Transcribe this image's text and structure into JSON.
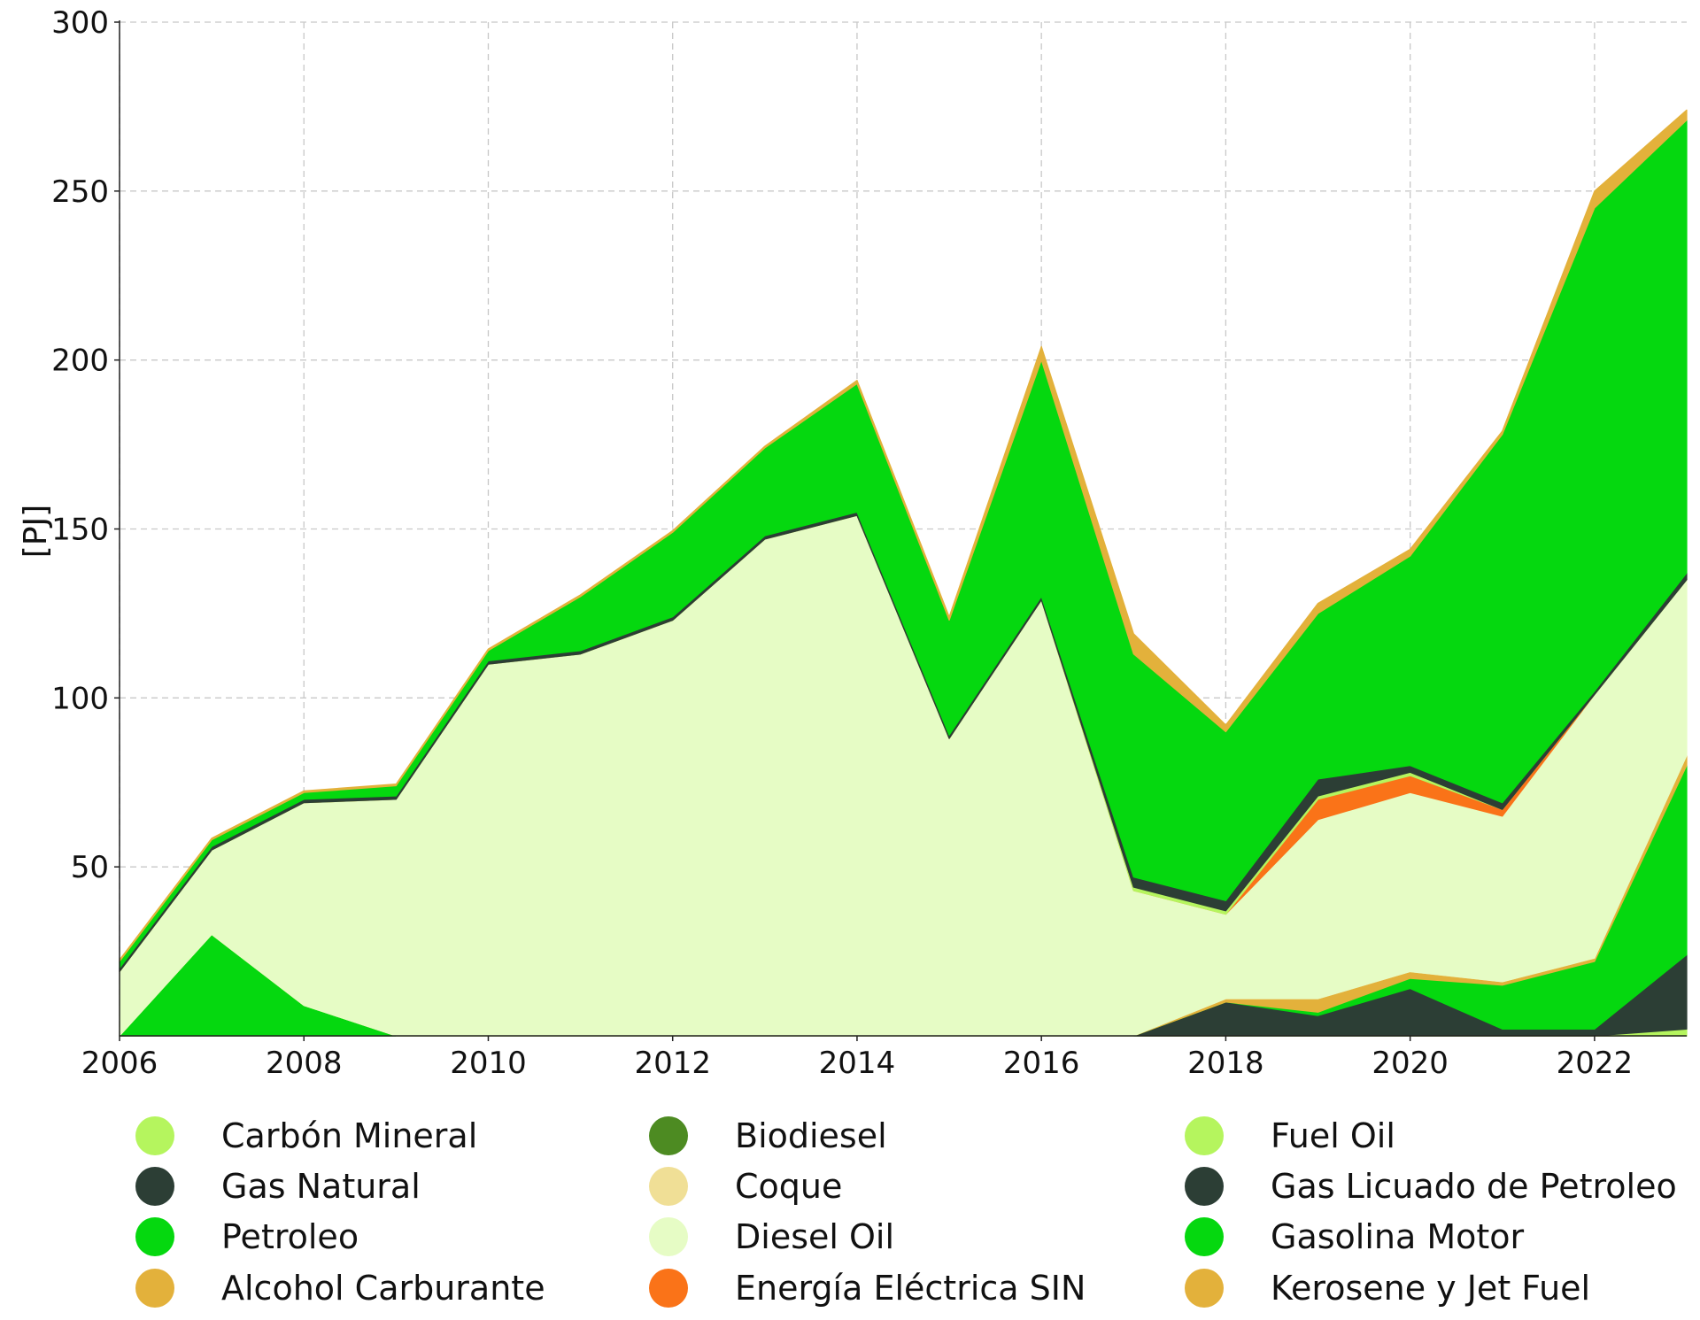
{
  "chart_data": {
    "type": "area",
    "stacked": true,
    "ylabel": "[PJ]",
    "ylim": [
      0,
      300
    ],
    "xlim": [
      2006,
      2023
    ],
    "x_ticks": [
      2006,
      2008,
      2010,
      2012,
      2014,
      2016,
      2018,
      2020,
      2022
    ],
    "y_ticks": [
      50,
      100,
      150,
      200,
      250,
      300
    ],
    "grid": true,
    "legend_position": "bottom",
    "x": [
      2006,
      2007,
      2008,
      2009,
      2010,
      2011,
      2012,
      2013,
      2014,
      2015,
      2016,
      2017,
      2018,
      2019,
      2020,
      2021,
      2022,
      2023
    ],
    "series": [
      {
        "name": "Carbón Mineral",
        "color": "#b5f55e",
        "values": [
          0,
          0,
          0,
          0,
          0,
          0,
          0,
          0,
          0,
          0,
          0,
          0,
          0,
          0,
          0,
          0,
          0,
          0
        ]
      },
      {
        "name": "Gas Natural",
        "color": "#2c3e35",
        "values": [
          0,
          0,
          0,
          0,
          0,
          0,
          0,
          0,
          0,
          0,
          0,
          0,
          0,
          0,
          0,
          0,
          0,
          0
        ]
      },
      {
        "name": "Petroleo",
        "color": "#05d80f",
        "values": [
          0,
          0,
          0,
          0,
          0,
          0,
          0,
          0,
          0,
          0,
          0,
          0,
          0,
          0,
          0,
          0,
          0,
          0
        ]
      },
      {
        "name": "Alcohol Carburante",
        "color": "#e3b13b",
        "values": [
          0,
          0,
          0,
          0,
          0,
          0,
          0,
          0,
          0,
          0,
          0,
          0,
          0,
          0,
          0,
          0,
          0,
          0
        ]
      },
      {
        "name": "Biodiesel",
        "color": "#4d8b22",
        "values": [
          0,
          0,
          0,
          0,
          0,
          0,
          0,
          0,
          0,
          0,
          0,
          0,
          0,
          0,
          0,
          0,
          0,
          0
        ]
      },
      {
        "name": "Coque",
        "color": "#f0df96",
        "values": [
          0,
          0,
          0,
          0,
          0,
          0,
          0,
          0,
          0,
          0,
          0,
          0,
          0,
          0,
          0,
          0,
          0,
          0
        ]
      },
      {
        "name": "Fuel Oil",
        "color": "#b5f55e",
        "values": [
          0,
          0,
          0,
          0,
          0,
          0,
          0,
          0,
          0,
          0,
          0,
          0,
          0,
          0,
          0,
          0,
          0,
          2
        ]
      },
      {
        "name": "Gas Licuado de Petroleo",
        "color": "#2c3e35",
        "values": [
          0,
          0,
          0,
          0,
          0,
          0,
          0,
          0,
          0,
          0,
          0,
          0,
          10,
          6,
          14,
          2,
          2,
          22
        ]
      },
      {
        "name": "Gasolina Motor",
        "color": "#05d80f",
        "values": [
          0,
          30,
          9,
          0,
          0,
          0,
          0,
          0,
          0,
          0,
          0,
          0,
          0,
          1,
          3,
          13,
          20,
          56
        ]
      },
      {
        "name": "Kerosene y Jet Fuel",
        "color": "#e3b13b",
        "values": [
          0,
          0,
          0,
          0,
          0,
          0,
          0,
          0,
          0,
          0,
          0,
          0,
          1,
          4,
          2,
          1,
          1,
          3
        ]
      },
      {
        "name": "Coque",
        "color": "#f0df96",
        "values": [
          0,
          0,
          0,
          0,
          0,
          0,
          0,
          0,
          0,
          0,
          0,
          0,
          0,
          0,
          0,
          0,
          0,
          0
        ]
      },
      {
        "name": "Diesel Oil",
        "color": "#e6fcc5",
        "values": [
          19,
          25,
          60,
          70,
          110,
          113,
          123,
          147,
          154,
          88,
          129,
          43,
          25,
          53,
          53,
          49,
          78,
          52
        ]
      },
      {
        "name": "Energía Eléctrica SIN",
        "color": "#fa7318",
        "values": [
          0,
          0,
          0,
          0,
          0,
          0,
          0,
          0,
          0,
          0,
          0,
          0,
          0,
          6,
          5,
          2,
          0,
          0
        ]
      },
      {
        "name": "Fuel Oil",
        "color": "#b5f55e",
        "values": [
          0,
          0,
          0,
          0,
          0,
          0,
          0,
          0,
          0,
          0,
          0,
          1,
          1,
          1,
          1,
          0,
          0,
          0
        ]
      },
      {
        "name": "Gas Licuado de Petroleo",
        "color": "#2c3e35",
        "values": [
          1,
          1,
          1,
          1,
          1,
          1,
          1,
          1,
          1,
          1,
          1,
          3,
          3,
          5,
          2,
          2,
          1,
          2
        ]
      },
      {
        "name": "Gasolina Motor",
        "color": "#05d80f",
        "values": [
          2,
          2,
          2,
          3,
          3,
          16,
          25,
          26,
          38,
          34,
          70,
          66,
          50,
          49,
          62,
          109,
          143,
          134
        ]
      },
      {
        "name": "Kerosene y Jet Fuel",
        "color": "#e3b13b",
        "values": [
          0.5,
          0.5,
          0.5,
          0.5,
          0.5,
          0.5,
          0.5,
          0.5,
          1,
          1,
          4,
          6,
          2,
          3,
          2,
          1,
          5,
          3
        ]
      }
    ],
    "legend": [
      [
        "Carbón Mineral",
        "Biodiesel",
        "Fuel Oil"
      ],
      [
        "Gas Natural",
        "Coque",
        "Gas Licuado de Petroleo"
      ],
      [
        "Petroleo",
        "Diesel Oil",
        "Gasolina Motor"
      ],
      [
        "Alcohol Carburante",
        "Energía Eléctrica SIN",
        "Kerosene y Jet Fuel"
      ]
    ],
    "legend_colors": {
      "Carbón Mineral": "#b5f55e",
      "Gas Natural": "#2c3e35",
      "Petroleo": "#05d80f",
      "Alcohol Carburante": "#e3b13b",
      "Biodiesel": "#4d8b22",
      "Coque": "#f0df96",
      "Diesel Oil": "#e6fcc5",
      "Energía Eléctrica SIN": "#fa7318",
      "Fuel Oil": "#b5f55e",
      "Gas Licuado de Petroleo": "#2c3e35",
      "Gasolina Motor": "#05d80f",
      "Kerosene y Jet Fuel": "#e3b13b"
    }
  }
}
